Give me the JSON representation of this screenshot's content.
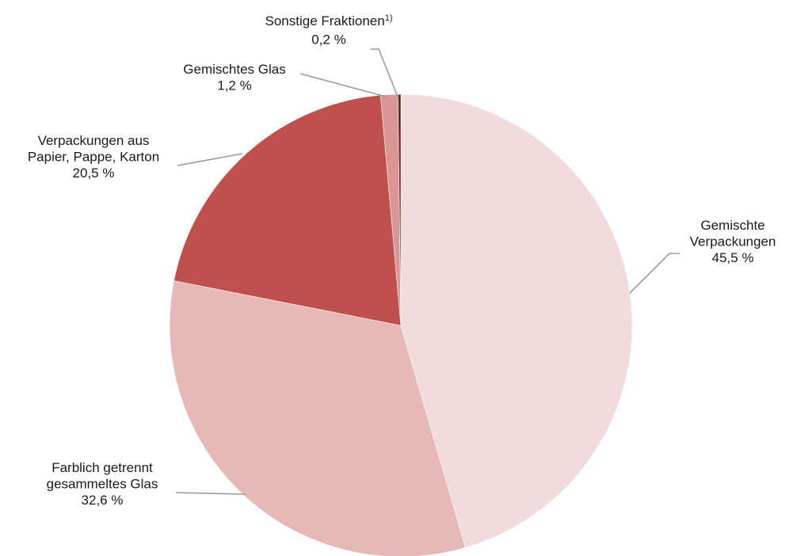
{
  "chart_data": {
    "type": "pie",
    "start_angle_deg": 0,
    "direction": "clockwise",
    "slices": [
      {
        "name": "Gemischte Verpackungen",
        "value": 45.5,
        "value_label": "45,5 %",
        "label_lines": [
          "Gemischte",
          "Verpackungen"
        ],
        "color": "#f2dcdb",
        "footnote": ""
      },
      {
        "name": "Farblich getrennt gesammeltes Glas",
        "value": 32.6,
        "value_label": "32,6 %",
        "label_lines": [
          "Farblich getrennt",
          "gesammeltes Glas"
        ],
        "color": "#e6b8b7",
        "footnote": ""
      },
      {
        "name": "Verpackungen aus Papier, Pappe, Karton",
        "value": 20.5,
        "value_label": "20,5 %",
        "label_lines": [
          "Verpackungen aus",
          "Papier, Pappe, Karton"
        ],
        "color": "#c0504d",
        "footnote": ""
      },
      {
        "name": "Gemischtes Glas",
        "value": 1.2,
        "value_label": "1,2 %",
        "label_lines": [
          "Gemischtes Glas"
        ],
        "color": "#da9694",
        "footnote": ""
      },
      {
        "name": "Sonstige Fraktionen",
        "value": 0.2,
        "value_label": "0,2 %",
        "label_lines": [
          "Sonstige Fraktionen"
        ],
        "color": "#632523",
        "footnote": "1)"
      }
    ]
  }
}
